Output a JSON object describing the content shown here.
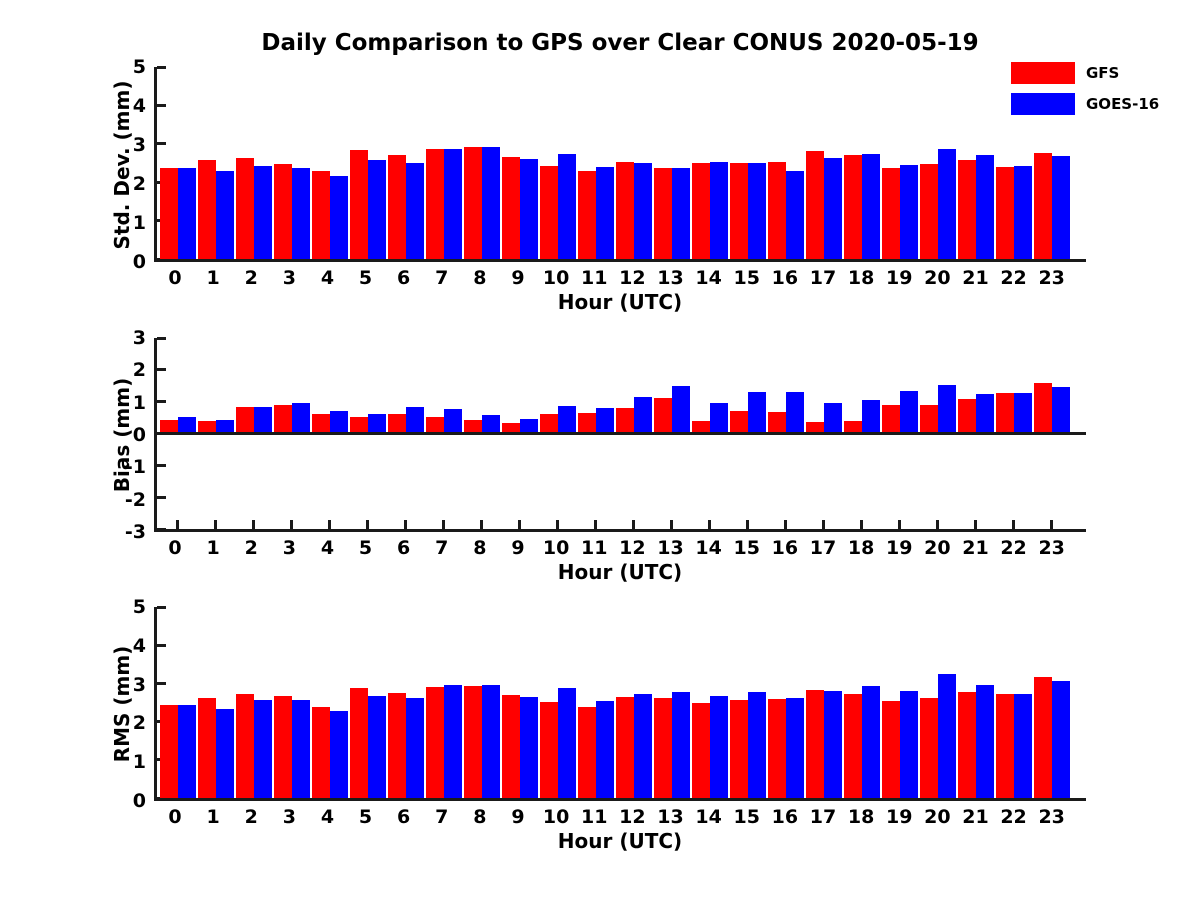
{
  "title": "Daily Comparison to GPS over Clear CONUS 2020-05-19",
  "xlabel": "Hour (UTC)",
  "colors": {
    "gfs": "#FF0000",
    "goes16": "#0000FF",
    "axis": "#1a1a1a"
  },
  "legend": {
    "items": [
      {
        "label": "GFS",
        "color": "#FF0000"
      },
      {
        "label": "GOES-16",
        "color": "#0000FF"
      }
    ]
  },
  "hours": [
    "0",
    "1",
    "2",
    "3",
    "4",
    "5",
    "6",
    "7",
    "8",
    "9",
    "10",
    "11",
    "12",
    "13",
    "14",
    "15",
    "16",
    "17",
    "18",
    "19",
    "20",
    "21",
    "22",
    "23"
  ],
  "chart_data": [
    {
      "type": "bar",
      "ylabel": "Std. Dev. (mm)",
      "xlabel": "Hour (UTC)",
      "ylim": [
        0,
        5
      ],
      "yticks": [
        0,
        1,
        2,
        3,
        4,
        5
      ],
      "grid": false,
      "legend_position": "upper-right-outside",
      "categories": [
        0,
        1,
        2,
        3,
        4,
        5,
        6,
        7,
        8,
        9,
        10,
        11,
        12,
        13,
        14,
        15,
        16,
        17,
        18,
        19,
        20,
        21,
        22,
        23
      ],
      "series": [
        {
          "name": "GFS",
          "color": "#FF0000",
          "values": [
            2.38,
            2.59,
            2.62,
            2.48,
            2.29,
            2.85,
            2.7,
            2.87,
            2.92,
            2.66,
            2.43,
            2.28,
            2.52,
            2.37,
            2.49,
            2.49,
            2.53,
            2.82,
            2.71,
            2.36,
            2.48,
            2.57,
            2.4,
            2.75
          ]
        },
        {
          "name": "GOES-16",
          "color": "#0000FF",
          "values": [
            2.36,
            2.28,
            2.42,
            2.38,
            2.15,
            2.59,
            2.49,
            2.87,
            2.92,
            2.61,
            2.74,
            2.4,
            2.49,
            2.36,
            2.52,
            2.49,
            2.3,
            2.62,
            2.74,
            2.45,
            2.87,
            2.72,
            2.42,
            2.68
          ]
        }
      ]
    },
    {
      "type": "bar",
      "ylabel": "Bias (mm)",
      "xlabel": "Hour (UTC)",
      "ylim": [
        -3,
        3
      ],
      "yticks": [
        -3,
        -2,
        -1,
        0,
        1,
        2,
        3
      ],
      "grid": false,
      "categories": [
        0,
        1,
        2,
        3,
        4,
        5,
        6,
        7,
        8,
        9,
        10,
        11,
        12,
        13,
        14,
        15,
        16,
        17,
        18,
        19,
        20,
        21,
        22,
        23
      ],
      "series": [
        {
          "name": "GFS",
          "color": "#FF0000",
          "values": [
            0.42,
            0.38,
            0.82,
            0.91,
            0.6,
            0.51,
            0.6,
            0.51,
            0.41,
            0.33,
            0.61,
            0.64,
            0.8,
            1.11,
            0.38,
            0.71,
            0.67,
            0.35,
            0.38,
            0.9,
            0.9,
            1.08,
            1.26,
            1.6
          ]
        },
        {
          "name": "GOES-16",
          "color": "#0000FF",
          "values": [
            0.53,
            0.41,
            0.82,
            0.95,
            0.71,
            0.62,
            0.83,
            0.78,
            0.57,
            0.45,
            0.88,
            0.81,
            1.14,
            1.5,
            0.95,
            1.3,
            1.29,
            0.95,
            1.05,
            1.34,
            1.53,
            1.23,
            1.26,
            1.45
          ]
        }
      ]
    },
    {
      "type": "bar",
      "ylabel": "RMS (mm)",
      "xlabel": "Hour (UTC)",
      "ylim": [
        0,
        5
      ],
      "yticks": [
        0,
        1,
        2,
        3,
        4,
        5
      ],
      "grid": false,
      "categories": [
        0,
        1,
        2,
        3,
        4,
        5,
        6,
        7,
        8,
        9,
        10,
        11,
        12,
        13,
        14,
        15,
        16,
        17,
        18,
        19,
        20,
        21,
        22,
        23
      ],
      "series": [
        {
          "name": "GFS",
          "color": "#FF0000",
          "values": [
            2.43,
            2.63,
            2.73,
            2.66,
            2.38,
            2.88,
            2.76,
            2.91,
            2.92,
            2.7,
            2.52,
            2.37,
            2.64,
            2.61,
            2.49,
            2.57,
            2.59,
            2.84,
            2.73,
            2.53,
            2.63,
            2.78,
            2.72,
            3.17
          ]
        },
        {
          "name": "GOES-16",
          "color": "#0000FF",
          "values": [
            2.43,
            2.33,
            2.56,
            2.56,
            2.28,
            2.66,
            2.63,
            2.96,
            2.96,
            2.64,
            2.87,
            2.54,
            2.72,
            2.77,
            2.68,
            2.78,
            2.61,
            2.81,
            2.93,
            2.81,
            3.24,
            2.97,
            2.72,
            3.06
          ]
        }
      ]
    }
  ]
}
